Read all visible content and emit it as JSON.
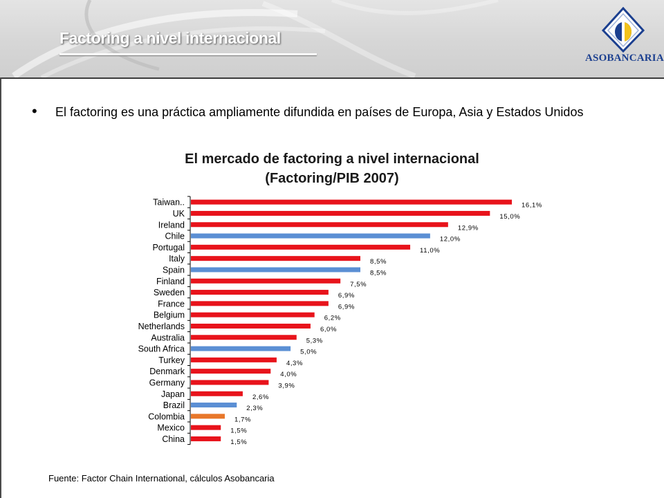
{
  "header": {
    "title": "Factoring a nivel internacional",
    "logo_text": "ASOBANCARIA"
  },
  "bullet": {
    "text": "El factoring es una práctica ampliamente difundida en países de Europa, Asia y Estados Unidos"
  },
  "chart_title": {
    "line1": "El mercado de factoring a nivel internacional",
    "line2": "(Factoring/PIB 2007)"
  },
  "source": "Fuente: Factor Chain International, cálculos Asobancaria",
  "colors": {
    "red": "#e8131b",
    "blue": "#5b8fd4",
    "orange": "#e8772a"
  },
  "chart_data": {
    "type": "bar",
    "orientation": "horizontal",
    "categories": [
      "Taiwan..",
      "UK",
      "Ireland",
      "Chile",
      "Portugal",
      "Italy",
      "Spain",
      "Finland",
      "Sweden",
      "France",
      "Belgium",
      "Netherlands",
      "Australia",
      "South Africa",
      "Turkey",
      "Denmark",
      "Germany",
      "Japan",
      "Brazil",
      "Colombia",
      "Mexico",
      "China"
    ],
    "values": [
      16.1,
      15.0,
      12.9,
      12.0,
      11.0,
      8.5,
      8.5,
      7.5,
      6.9,
      6.9,
      6.2,
      6.0,
      5.3,
      5.0,
      4.3,
      4.0,
      3.9,
      2.6,
      2.3,
      1.7,
      1.5,
      1.5
    ],
    "labels": [
      "16,1%",
      "15,0%",
      "12,9%",
      "12,0%",
      "11,0%",
      "8,5%",
      "8,5%",
      "7,5%",
      "6,9%",
      "6,9%",
      "6,2%",
      "6,0%",
      "5,3%",
      "5,0%",
      "4,3%",
      "4,0%",
      "3,9%",
      "2,6%",
      "2,3%",
      "1,7%",
      "1,5%",
      "1,5%"
    ],
    "bar_colors": [
      "red",
      "red",
      "red",
      "blue",
      "red",
      "red",
      "blue",
      "red",
      "red",
      "red",
      "red",
      "red",
      "red",
      "blue",
      "red",
      "red",
      "red",
      "red",
      "blue",
      "orange",
      "red",
      "red"
    ],
    "xlim": [
      0,
      17
    ],
    "title": "El mercado de factoring a nivel internacional (Factoring/PIB 2007)",
    "xlabel": "",
    "ylabel": "",
    "grid": false,
    "legend": false
  }
}
